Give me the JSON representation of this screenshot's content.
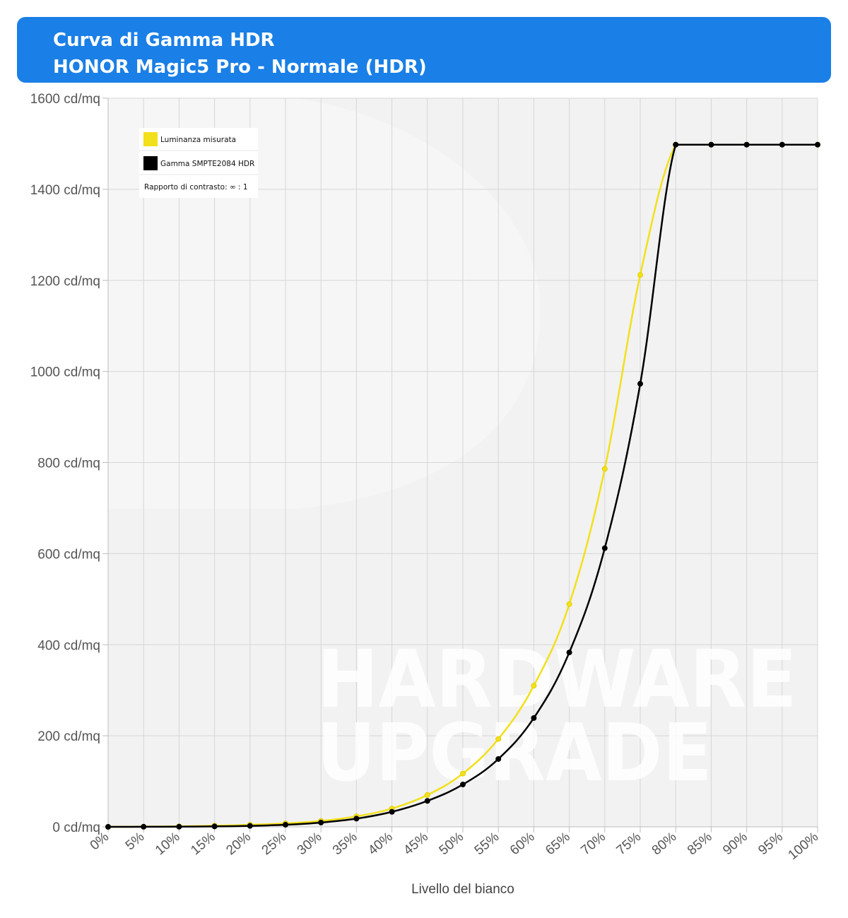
{
  "header": {
    "title": "Curva di Gamma HDR",
    "subtitle": "HONOR Magic5 Pro - Normale (HDR)"
  },
  "watermark": {
    "line1": "HARDWARE",
    "line2": "UPGRADE"
  },
  "colors": {
    "header_bg": "#1a7fe6",
    "measured": "#f2e01a",
    "reference": "#000000",
    "plot_bg": "#f2f2f2",
    "grid": "#d6d6d6"
  },
  "chart_data": {
    "type": "line",
    "xlabel": "Livello del bianco",
    "ylabel": "",
    "ylim": [
      0,
      1600
    ],
    "grid": true,
    "legend_position": "top-left",
    "categories": [
      "0%",
      "5%",
      "10%",
      "15%",
      "20%",
      "25%",
      "30%",
      "35%",
      "40%",
      "45%",
      "50%",
      "55%",
      "60%",
      "65%",
      "70%",
      "75%",
      "80%",
      "85%",
      "90%",
      "95%",
      "100%"
    ],
    "y_ticks": [
      0,
      200,
      400,
      600,
      800,
      1000,
      1200,
      1400,
      1600
    ],
    "y_tick_labels": [
      "0 cd/mq",
      "200 cd/mq",
      "400 cd/mq",
      "600 cd/mq",
      "800 cd/mq",
      "1000 cd/mq",
      "1200 cd/mq",
      "1400 cd/mq",
      "1600 cd/mq"
    ],
    "series": [
      {
        "name": "Luminanza misurata",
        "color": "#f2e01a",
        "values": [
          0,
          0.5,
          1.2,
          2.5,
          4.5,
          7.5,
          13,
          23,
          40,
          70,
          117,
          193,
          310,
          489,
          786,
          1212,
          1498,
          1498,
          1498,
          1498,
          1498
        ]
      },
      {
        "name": "Gamma SMPTE2084 HDR",
        "color": "#000000",
        "values": [
          0,
          0.1,
          0.3,
          0.9,
          2.1,
          4.6,
          9.4,
          18,
          33,
          57,
          93,
          149,
          239,
          383,
          612,
          973,
          1498,
          1498,
          1498,
          1498,
          1498
        ]
      }
    ],
    "legend_note": "Rapporto di contrasto: ∞ : 1"
  }
}
